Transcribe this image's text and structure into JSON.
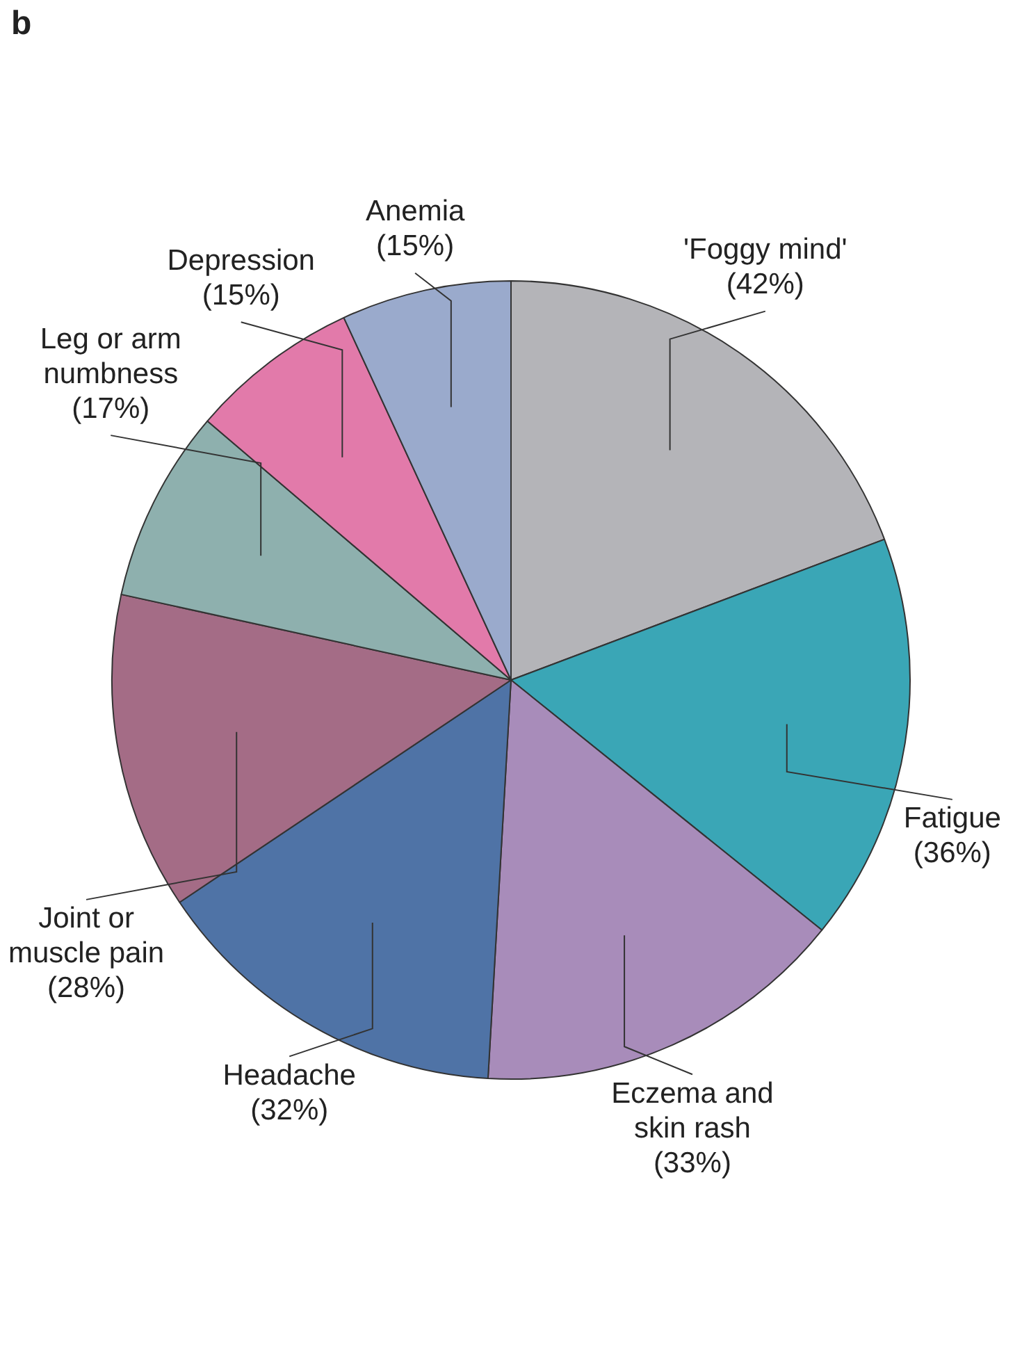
{
  "chart_data": {
    "type": "pie",
    "title": "b",
    "categories": [
      "'Foggy mind'",
      "Fatigue",
      "Eczema and skin rash",
      "Headache",
      "Joint or muscle pain",
      "Leg or arm numbness",
      "Depression",
      "Anemia"
    ],
    "values": [
      42,
      36,
      33,
      32,
      28,
      17,
      15,
      15
    ],
    "value_labels": [
      "(42%)",
      "(36%)",
      "(33%)",
      "(32%)",
      "(28%)",
      "(17%)",
      "(15%)",
      "(15%)"
    ],
    "colors": [
      "#b4b4b8",
      "#3aa6b6",
      "#a88cba",
      "#4f73a6",
      "#a46c86",
      "#8eb0ae",
      "#e27aaa",
      "#9aaacc"
    ],
    "legend": false
  }
}
